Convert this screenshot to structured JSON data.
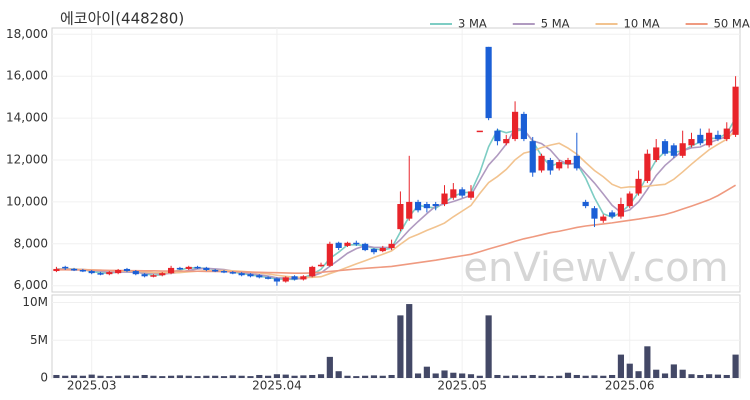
{
  "chart_data": {
    "type": "candlestick",
    "title": "에코아이(448280)",
    "watermark": "enViewV.com",
    "up_color": "#e8242a",
    "down_color": "#1b5fd6",
    "volume_color": "#434866",
    "open": [
      6700,
      6900,
      6800,
      6750,
      6700,
      6600,
      6550,
      6600,
      6800,
      6700,
      6550,
      6450,
      6500,
      6600,
      6850,
      6800,
      6900,
      6850,
      6750,
      6700,
      6650,
      6600,
      6550,
      6500,
      6400,
      6350,
      6200,
      6450,
      6300,
      6450,
      6950,
      6950,
      8050,
      7900,
      8050,
      8000,
      7750,
      7650,
      7800,
      8700,
      9200,
      10000,
      9900,
      9900,
      9900,
      10200,
      10600,
      10200,
      13400,
      17400,
      13400,
      12800,
      13000,
      14200,
      12900,
      11500,
      12000,
      11600,
      11800,
      12200,
      10000,
      9700,
      9100,
      9500,
      9300,
      9800,
      10400,
      11000,
      12000,
      12900,
      12700,
      12200,
      12700,
      13200,
      12700,
      13200,
      13000,
      13200
    ],
    "high": [
      6900,
      6950,
      6850,
      6800,
      6750,
      6650,
      6700,
      6800,
      6850,
      6750,
      6600,
      6550,
      6650,
      6950,
      6900,
      6950,
      6950,
      6900,
      6800,
      6750,
      6700,
      6650,
      6600,
      6550,
      6450,
      6400,
      6450,
      6500,
      6500,
      6950,
      7100,
      8100,
      8100,
      8100,
      8150,
      8050,
      7800,
      7900,
      8200,
      10500,
      12200,
      10100,
      10000,
      10000,
      10800,
      10900,
      10700,
      10800,
      13400,
      17400,
      13500,
      13200,
      14800,
      14300,
      13100,
      12300,
      12100,
      12000,
      12100,
      13300,
      10100,
      9800,
      9400,
      9600,
      10200,
      10500,
      11500,
      12500,
      13000,
      13000,
      12800,
      13400,
      13300,
      13500,
      13500,
      13400,
      13800,
      16000
    ],
    "low": [
      6650,
      6750,
      6700,
      6650,
      6550,
      6500,
      6500,
      6550,
      6650,
      6500,
      6400,
      6400,
      6450,
      6550,
      6750,
      6750,
      6800,
      6700,
      6650,
      6600,
      6550,
      6450,
      6400,
      6350,
      6300,
      6000,
      6150,
      6250,
      6250,
      6400,
      6900,
      6900,
      7700,
      7850,
      7900,
      7650,
      7500,
      7600,
      7700,
      8600,
      9100,
      9500,
      9500,
      9600,
      9800,
      10100,
      10200,
      10100,
      13400,
      13900,
      12700,
      12700,
      12900,
      12900,
      11200,
      11400,
      11300,
      11500,
      11600,
      11500,
      9700,
      8800,
      9000,
      9200,
      9200,
      9700,
      10300,
      10900,
      11900,
      12200,
      12100,
      12100,
      12600,
      12700,
      12600,
      12900,
      12900,
      13100
    ],
    "close": [
      6800,
      6850,
      6750,
      6700,
      6600,
      6550,
      6650,
      6750,
      6700,
      6550,
      6450,
      6500,
      6600,
      6850,
      6800,
      6900,
      6850,
      6750,
      6700,
      6650,
      6600,
      6500,
      6450,
      6400,
      6350,
      6200,
      6400,
      6300,
      6450,
      6900,
      7000,
      8000,
      7800,
      8050,
      8000,
      7700,
      7600,
      7800,
      8000,
      9900,
      10000,
      9600,
      9700,
      9800,
      10400,
      10600,
      10300,
      10500,
      13400,
      14000,
      12900,
      13000,
      14300,
      13000,
      11400,
      12200,
      11500,
      11900,
      12000,
      11600,
      9800,
      9200,
      9300,
      9300,
      9900,
      10400,
      11100,
      12300,
      12600,
      12300,
      12200,
      12800,
      13000,
      12800,
      13300,
      13000,
      13500,
      15500
    ],
    "volume": [
      400000,
      300000,
      350000,
      300000,
      450000,
      300000,
      250000,
      300000,
      350000,
      300000,
      400000,
      300000,
      250000,
      300000,
      350000,
      300000,
      250000,
      300000,
      300000,
      250000,
      350000,
      300000,
      250000,
      400000,
      300000,
      500000,
      450000,
      300000,
      350000,
      400000,
      500000,
      2800000,
      900000,
      300000,
      250000,
      300000,
      350000,
      300000,
      400000,
      8300000,
      9800000,
      600000,
      1500000,
      600000,
      1000000,
      700000,
      600000,
      500000,
      300000,
      8300000,
      400000,
      300000,
      350000,
      300000,
      400000,
      300000,
      250000,
      300000,
      700000,
      400000,
      300000,
      350000,
      300000,
      400000,
      3100000,
      1900000,
      900000,
      4200000,
      1100000,
      600000,
      1800000,
      1100000,
      500000,
      400000,
      500000,
      450000,
      400000,
      3100000
    ],
    "series": [
      {
        "name": "3 MA",
        "color": "#7ecdc4",
        "values": [
          6800,
          6800,
          6800,
          6767,
          6683,
          6617,
          6600,
          6650,
          6700,
          6667,
          6567,
          6500,
          6517,
          6650,
          6750,
          6850,
          6850,
          6833,
          6767,
          6700,
          6650,
          6583,
          6517,
          6450,
          6400,
          6317,
          6317,
          6300,
          6383,
          6550,
          6783,
          7300,
          7600,
          7950,
          7950,
          7917,
          7767,
          7700,
          7800,
          8567,
          9300,
          9833,
          9767,
          9700,
          9967,
          10267,
          10433,
          10467,
          11400,
          12633,
          13433,
          13300,
          13400,
          13433,
          12900,
          12200,
          11700,
          11867,
          11800,
          11833,
          11133,
          10200,
          9433,
          9267,
          9500,
          9867,
          10467,
          11267,
          12000,
          12400,
          12367,
          12433,
          12667,
          12867,
          13033,
          13033,
          13267,
          14000
        ]
      },
      {
        "name": "5 MA",
        "color": "#b09ac0",
        "values": [
          6800,
          6800,
          6790,
          6780,
          6740,
          6690,
          6650,
          6650,
          6650,
          6640,
          6600,
          6590,
          6560,
          6590,
          6640,
          6730,
          6800,
          6830,
          6800,
          6770,
          6700,
          6640,
          6580,
          6520,
          6460,
          6380,
          6360,
          6330,
          6340,
          6450,
          6610,
          6930,
          7230,
          7550,
          7770,
          7910,
          7830,
          7830,
          7820,
          8200,
          8660,
          9060,
          9440,
          9800,
          9900,
          10020,
          10160,
          10320,
          11040,
          11760,
          12220,
          12760,
          13520,
          13440,
          12920,
          12780,
          12480,
          12000,
          11800,
          11840,
          11360,
          10900,
          10380,
          9840,
          9500,
          9620,
          10000,
          10600,
          11260,
          11740,
          12100,
          12440,
          12580,
          12620,
          12820,
          12980,
          13120,
          13620
        ]
      },
      {
        "name": "10 MA",
        "color": "#f2c38f",
        "values": [
          6780,
          6780,
          6780,
          6770,
          6760,
          6740,
          6720,
          6700,
          6700,
          6690,
          6660,
          6630,
          6620,
          6620,
          6630,
          6660,
          6690,
          6710,
          6720,
          6730,
          6710,
          6690,
          6650,
          6610,
          6560,
          6500,
          6450,
          6410,
          6390,
          6400,
          6430,
          6580,
          6720,
          6880,
          7040,
          7190,
          7350,
          7500,
          7660,
          7980,
          8280,
          8450,
          8640,
          8810,
          8990,
          9290,
          9560,
          9830,
          10400,
          10920,
          11210,
          11550,
          12010,
          12330,
          12430,
          12590,
          12710,
          12800,
          12570,
          12280,
          11880,
          11500,
          11200,
          10840,
          10670,
          10720,
          10710,
          10750,
          10800,
          10840,
          11080,
          11430,
          11800,
          12150,
          12490,
          12750,
          12990,
          13430
        ]
      },
      {
        "name": "50 MA",
        "color": "#ef9a80",
        "values": [
          6760,
          6760,
          6750,
          6750,
          6740,
          6740,
          6730,
          6730,
          6720,
          6720,
          6710,
          6710,
          6700,
          6700,
          6700,
          6690,
          6690,
          6680,
          6680,
          6670,
          6670,
          6660,
          6650,
          6640,
          6630,
          6620,
          6610,
          6600,
          6600,
          6610,
          6640,
          6680,
          6720,
          6760,
          6800,
          6830,
          6860,
          6890,
          6920,
          6980,
          7040,
          7100,
          7160,
          7220,
          7290,
          7360,
          7430,
          7500,
          7620,
          7750,
          7870,
          7990,
          8120,
          8240,
          8330,
          8430,
          8530,
          8600,
          8690,
          8780,
          8850,
          8900,
          8950,
          9000,
          9060,
          9120,
          9180,
          9250,
          9320,
          9400,
          9520,
          9660,
          9800,
          9950,
          10100,
          10300,
          10550,
          10800
        ]
      }
    ],
    "xlim": [
      -0.5,
      77.5
    ],
    "xticks": [
      {
        "value": 4,
        "label": "2025.03"
      },
      {
        "value": 25,
        "label": "2025.04"
      },
      {
        "value": 46,
        "label": "2025.05"
      },
      {
        "value": 65,
        "label": "2025.06"
      }
    ],
    "ylim": [
      5700,
      18300
    ],
    "yticks": [
      {
        "value": 6000,
        "label": "6,000"
      },
      {
        "value": 8000,
        "label": "8,000"
      },
      {
        "value": 10000,
        "label": "10,000"
      },
      {
        "value": 12000,
        "label": "12,000"
      },
      {
        "value": 14000,
        "label": "14,000"
      },
      {
        "value": 16000,
        "label": "16,000"
      },
      {
        "value": 18000,
        "label": "18,000"
      }
    ],
    "volume_lim": [
      0,
      11000000
    ],
    "volume_ticks": [
      0,
      {
        "value": 5000000,
        "label": "5M"
      },
      {
        "value": 10000000,
        "label": "10M"
      }
    ],
    "grid": true
  }
}
